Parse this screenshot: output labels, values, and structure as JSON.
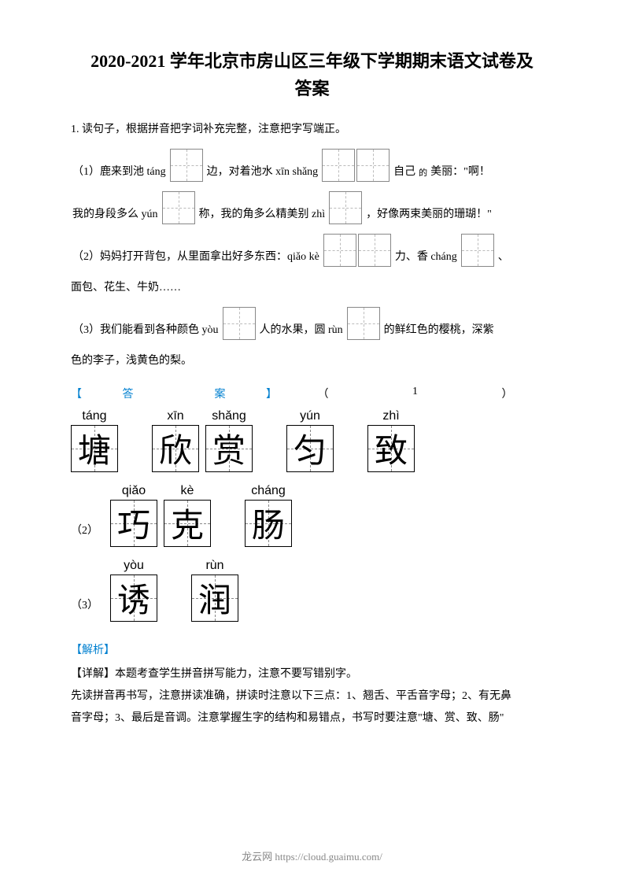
{
  "title_line1": "2020-2021 学年北京市房山区三年级下学期期末语文试卷及",
  "title_line2": "答案",
  "question1": "1. 读句子，根据拼音把字词补充完整，注意把字写端正。",
  "q1_1_a": "（1）鹿来到池 táng",
  "q1_1_b": "边，对着池水 xīn shǎng",
  "q1_1_c": "自己",
  "q1_1_de": "的",
  "q1_1_d": "美丽：\"啊！",
  "q1_2_a": "我的身段多么 yún",
  "q1_2_b": "称，我的角多么精美别 zhì",
  "q1_2_c": "，好像两束美丽的珊瑚！\"",
  "q1_3_a": "（2）妈妈打开背包，从里面拿出好多东西：qiǎo kè",
  "q1_3_b": "力、香 cháng",
  "q1_3_c": "、",
  "q1_4": "面包、花生、牛奶……",
  "q1_5_a": "（3）我们能看到各种颜色 yòu",
  "q1_5_b": "人的水果，圆 rùn",
  "q1_5_c": "的鲜红色的樱桃，深紫",
  "q1_6": "色的李子，浅黄色的梨。",
  "ans_bracket_l": "【",
  "ans_label_da": "答",
  "ans_label_an": "案",
  "ans_bracket_r": "】",
  "ans_paren_l": "（",
  "ans_paren_1": "1",
  "ans_paren_r": "）",
  "row2_label": "（2）",
  "row3_label": "（3）",
  "chars": {
    "tang": {
      "pinyin": "táng",
      "char": "塘"
    },
    "xin": {
      "pinyin": "xīn",
      "char": "欣"
    },
    "shang": {
      "pinyin": "shǎng",
      "char": "赏"
    },
    "yun": {
      "pinyin": "yún",
      "char": "匀"
    },
    "zhi": {
      "pinyin": "zhì",
      "char": "致"
    },
    "qiao": {
      "pinyin": "qiǎo",
      "char": "巧"
    },
    "ke": {
      "pinyin": "kè",
      "char": "克"
    },
    "chang": {
      "pinyin": "cháng",
      "char": "肠"
    },
    "you": {
      "pinyin": "yòu",
      "char": "诱"
    },
    "run": {
      "pinyin": "rùn",
      "char": "润"
    }
  },
  "analysis_label": "【解析】",
  "analysis_1": "【详解】本题考查学生拼音拼写能力，注意不要写错别字。",
  "analysis_2": "先读拼音再书写，注意拼读准确，拼读时注意以下三点：1、翘舌、平舌音字母；2、有无鼻",
  "analysis_3": "音字母；3、最后是音调。注意掌握生字的结构和易错点，书写时要注意\"塘、赏、致、肠\"",
  "footer": "龙云网 https://cloud.guaimu.com/"
}
